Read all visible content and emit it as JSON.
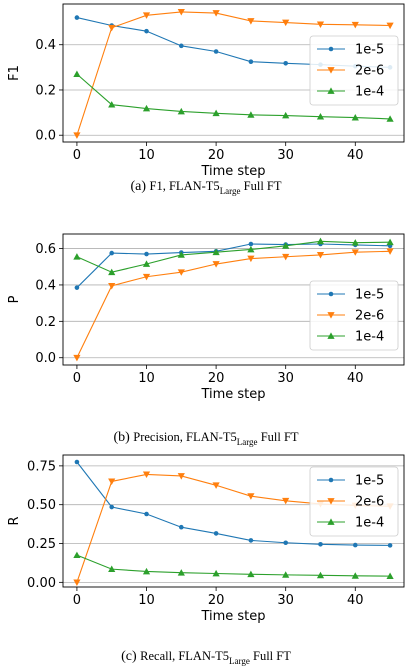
{
  "chart_data": [
    {
      "type": "line",
      "caption": {
        "prefix": "(a)",
        "metric": "F1, FLAN-T5",
        "sub": "Large",
        "suffix": "Full FT"
      },
      "ylabel": "F1",
      "xlabel": "Time step",
      "xlim": [
        -2,
        47
      ],
      "ylim": [
        -0.03,
        0.58
      ],
      "xticks": [
        0,
        10,
        20,
        30,
        40
      ],
      "yticks": [
        0.0,
        0.2,
        0.4
      ],
      "ytick_labels": [
        "0.0",
        "0.2",
        "0.4"
      ],
      "grid": "horizontal",
      "legend_position": "right",
      "x": [
        0,
        5,
        10,
        15,
        20,
        25,
        30,
        35,
        40,
        45
      ],
      "series": [
        {
          "name": "1e-5",
          "color": "#1f77b4",
          "marker": "circle",
          "values": [
            0.52,
            0.485,
            0.46,
            0.395,
            0.37,
            0.325,
            0.318,
            0.312,
            0.305,
            0.3
          ]
        },
        {
          "name": "2e-6",
          "color": "#ff7f0e",
          "marker": "triangle-down",
          "values": [
            0.0,
            0.475,
            0.53,
            0.545,
            0.54,
            0.505,
            0.498,
            0.49,
            0.488,
            0.485
          ]
        },
        {
          "name": "1e-4",
          "color": "#2ca02c",
          "marker": "triangle-up",
          "values": [
            0.27,
            0.135,
            0.118,
            0.105,
            0.097,
            0.09,
            0.087,
            0.082,
            0.078,
            0.072
          ]
        }
      ]
    },
    {
      "type": "line",
      "caption": {
        "prefix": "(b)",
        "metric": "Precision, FLAN-T5",
        "sub": "Large",
        "suffix": "Full FT"
      },
      "ylabel": "P",
      "xlabel": "Time step",
      "xlim": [
        -2,
        47
      ],
      "ylim": [
        -0.04,
        0.68
      ],
      "xticks": [
        0,
        10,
        20,
        30,
        40
      ],
      "yticks": [
        0.0,
        0.2,
        0.4,
        0.6
      ],
      "ytick_labels": [
        "0.0",
        "0.2",
        "0.4",
        "0.6"
      ],
      "grid": "horizontal",
      "legend_position": "lower right",
      "x": [
        0,
        5,
        10,
        15,
        20,
        25,
        30,
        35,
        40,
        45
      ],
      "series": [
        {
          "name": "1e-5",
          "color": "#1f77b4",
          "marker": "circle",
          "values": [
            0.385,
            0.575,
            0.57,
            0.578,
            0.585,
            0.625,
            0.622,
            0.625,
            0.62,
            0.615
          ]
        },
        {
          "name": "2e-6",
          "color": "#ff7f0e",
          "marker": "triangle-down",
          "values": [
            0.0,
            0.395,
            0.445,
            0.47,
            0.515,
            0.545,
            0.555,
            0.565,
            0.58,
            0.585
          ]
        },
        {
          "name": "1e-4",
          "color": "#2ca02c",
          "marker": "triangle-up",
          "values": [
            0.555,
            0.47,
            0.515,
            0.565,
            0.58,
            0.595,
            0.615,
            0.64,
            0.632,
            0.635
          ]
        }
      ]
    },
    {
      "type": "line",
      "caption": {
        "prefix": "(c)",
        "metric": "Recall, FLAN-T5",
        "sub": "Large",
        "suffix": "Full FT"
      },
      "ylabel": "R",
      "xlabel": "Time step",
      "xlim": [
        -2,
        47
      ],
      "ylim": [
        -0.03,
        0.82
      ],
      "xticks": [
        0,
        10,
        20,
        30,
        40
      ],
      "yticks": [
        0.0,
        0.25,
        0.5,
        0.75
      ],
      "ytick_labels": [
        "0.00",
        "0.25",
        "0.50",
        "0.75"
      ],
      "grid": "horizontal",
      "legend_position": "right",
      "x": [
        0,
        5,
        10,
        15,
        20,
        25,
        30,
        35,
        40,
        45
      ],
      "series": [
        {
          "name": "1e-5",
          "color": "#1f77b4",
          "marker": "circle",
          "values": [
            0.775,
            0.485,
            0.44,
            0.355,
            0.315,
            0.27,
            0.255,
            0.245,
            0.24,
            0.238
          ]
        },
        {
          "name": "2e-6",
          "color": "#ff7f0e",
          "marker": "triangle-down",
          "values": [
            0.0,
            0.65,
            0.695,
            0.685,
            0.625,
            0.555,
            0.525,
            0.505,
            0.495,
            0.49
          ]
        },
        {
          "name": "1e-4",
          "color": "#2ca02c",
          "marker": "triangle-up",
          "values": [
            0.175,
            0.085,
            0.07,
            0.062,
            0.057,
            0.052,
            0.048,
            0.045,
            0.042,
            0.04
          ]
        }
      ]
    }
  ]
}
